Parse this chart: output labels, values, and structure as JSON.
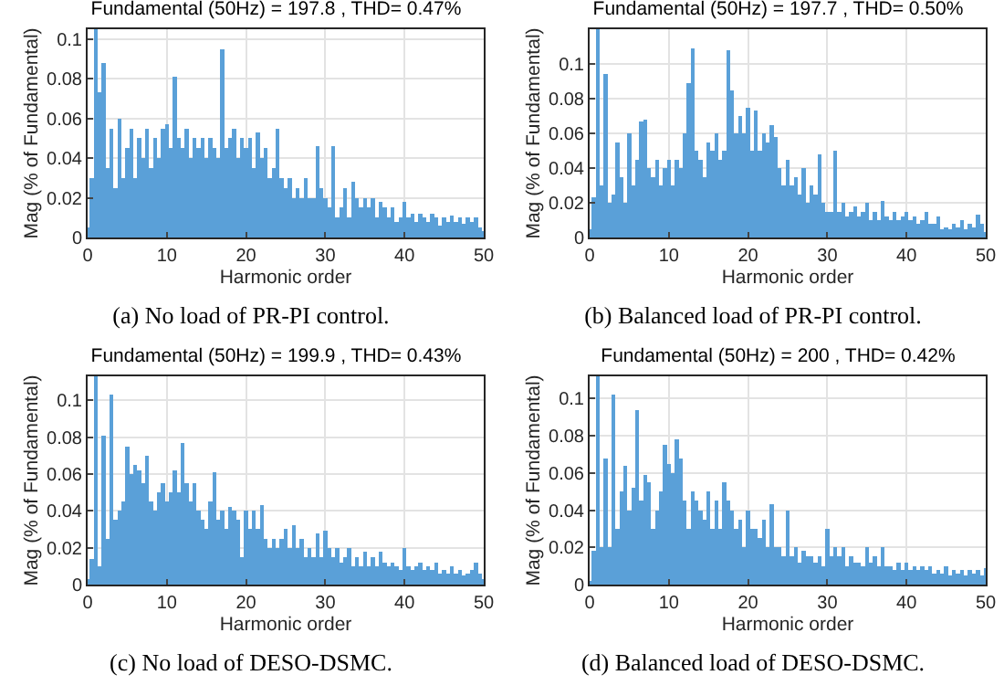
{
  "chart_data": [
    {
      "type": "bar",
      "title": "Fundamental (50Hz) = 197.8 , THD= 0.47%",
      "xlabel": "Harmonic order",
      "ylabel": "Mag (% of Fundamental)",
      "annotations": [
        "(a) No load of PR-PI control."
      ],
      "xlim": [
        0,
        50
      ],
      "xticks": [
        0,
        10,
        20,
        30,
        40,
        50
      ],
      "ylim": [
        0,
        0.105
      ],
      "yticks": [
        0,
        0.02,
        0.04,
        0.06,
        0.08,
        0.1
      ],
      "grid": true,
      "x": [
        0,
        0.5,
        1,
        1.5,
        2,
        2.5,
        3,
        3.5,
        4,
        4.5,
        5,
        5.5,
        6,
        6.5,
        7,
        7.5,
        8,
        8.5,
        9,
        9.5,
        10,
        10.5,
        11,
        11.5,
        12,
        12.5,
        13,
        13.5,
        14,
        14.5,
        15,
        15.5,
        16,
        16.5,
        17,
        17.5,
        18,
        18.5,
        19,
        19.5,
        20,
        20.5,
        21,
        21.5,
        22,
        22.5,
        23,
        23.5,
        24,
        24.5,
        25,
        25.5,
        26,
        26.5,
        27,
        27.5,
        28,
        28.5,
        29,
        29.5,
        30,
        30.5,
        31,
        31.5,
        32,
        32.5,
        33,
        33.5,
        34,
        34.5,
        35,
        35.5,
        36,
        36.5,
        37,
        37.5,
        38,
        38.5,
        39,
        39.5,
        40,
        40.5,
        41,
        41.5,
        42,
        42.5,
        43,
        43.5,
        44,
        44.5,
        45,
        45.5,
        46,
        46.5,
        47,
        47.5,
        48,
        48.5,
        49,
        49.5,
        50
      ],
      "series": [
        {
          "color": "#5aa0d8",
          "values": [
            0.005,
            0.03,
            0.105,
            0.073,
            0.088,
            0.035,
            0.055,
            0.025,
            0.06,
            0.03,
            0.045,
            0.055,
            0.03,
            0.05,
            0.04,
            0.055,
            0.035,
            0.05,
            0.04,
            0.055,
            0.057,
            0.045,
            0.081,
            0.05,
            0.045,
            0.055,
            0.04,
            0.05,
            0.045,
            0.05,
            0.04,
            0.05,
            0.045,
            0.04,
            0.095,
            0.045,
            0.05,
            0.055,
            0.04,
            0.05,
            0.045,
            0.05,
            0.035,
            0.053,
            0.04,
            0.045,
            0.03,
            0.035,
            0.055,
            0.03,
            0.025,
            0.03,
            0.02,
            0.025,
            0.02,
            0.03,
            0.02,
            0.02,
            0.046,
            0.025,
            0.02,
            0.015,
            0.046,
            0.01,
            0.015,
            0.025,
            0.01,
            0.028,
            0.02,
            0.015,
            0.02,
            0.015,
            0.02,
            0.01,
            0.018,
            0.015,
            0.01,
            0.015,
            0.008,
            0.01,
            0.018,
            0.01,
            0.012,
            0.008,
            0.012,
            0.01,
            0.008,
            0.012,
            0.01,
            0.006,
            0.01,
            0.008,
            0.011,
            0.008,
            0.01,
            0.007,
            0.01,
            0.008,
            0.01,
            0.005,
            0.003
          ]
        }
      ]
    },
    {
      "type": "bar",
      "title": "Fundamental (50Hz) = 197.7 , THD= 0.50%",
      "xlabel": "Harmonic order",
      "ylabel": "Mag (% of Fundamental)",
      "annotations": [
        "(b) Balanced load of PR-PI control."
      ],
      "xlim": [
        0,
        50
      ],
      "xticks": [
        0,
        10,
        20,
        30,
        40,
        50
      ],
      "ylim": [
        0,
        0.12
      ],
      "yticks": [
        0,
        0.02,
        0.04,
        0.06,
        0.08,
        0.1
      ],
      "grid": true,
      "x": [
        0,
        0.5,
        1,
        1.5,
        2,
        2.5,
        3,
        3.5,
        4,
        4.5,
        5,
        5.5,
        6,
        6.5,
        7,
        7.5,
        8,
        8.5,
        9,
        9.5,
        10,
        10.5,
        11,
        11.5,
        12,
        12.5,
        13,
        13.5,
        14,
        14.5,
        15,
        15.5,
        16,
        16.5,
        17,
        17.5,
        18,
        18.5,
        19,
        19.5,
        20,
        20.5,
        21,
        21.5,
        22,
        22.5,
        23,
        23.5,
        24,
        24.5,
        25,
        25.5,
        26,
        26.5,
        27,
        27.5,
        28,
        28.5,
        29,
        29.5,
        30,
        30.5,
        31,
        31.5,
        32,
        32.5,
        33,
        33.5,
        34,
        34.5,
        35,
        35.5,
        36,
        36.5,
        37,
        37.5,
        38,
        38.5,
        39,
        39.5,
        40,
        40.5,
        41,
        41.5,
        42,
        42.5,
        43,
        43.5,
        44,
        44.5,
        45,
        45.5,
        46,
        46.5,
        47,
        47.5,
        48,
        48.5,
        49,
        49.5,
        50
      ],
      "series": [
        {
          "color": "#5aa0d8",
          "values": [
            0.005,
            0.023,
            0.12,
            0.03,
            0.094,
            0.02,
            0.025,
            0.055,
            0.035,
            0.02,
            0.06,
            0.03,
            0.045,
            0.067,
            0.068,
            0.04,
            0.035,
            0.045,
            0.03,
            0.04,
            0.045,
            0.03,
            0.045,
            0.04,
            0.06,
            0.089,
            0.109,
            0.05,
            0.045,
            0.035,
            0.055,
            0.05,
            0.06,
            0.045,
            0.05,
            0.108,
            0.085,
            0.06,
            0.07,
            0.06,
            0.075,
            0.05,
            0.073,
            0.05,
            0.06,
            0.055,
            0.065,
            0.058,
            0.04,
            0.03,
            0.045,
            0.03,
            0.035,
            0.025,
            0.04,
            0.02,
            0.03,
            0.025,
            0.048,
            0.02,
            0.015,
            0.015,
            0.05,
            0.015,
            0.02,
            0.012,
            0.015,
            0.018,
            0.012,
            0.015,
            0.02,
            0.01,
            0.015,
            0.01,
            0.021,
            0.012,
            0.01,
            0.015,
            0.01,
            0.012,
            0.015,
            0.01,
            0.012,
            0.008,
            0.01,
            0.015,
            0.008,
            0.008,
            0.012,
            0.005,
            0.006,
            0.005,
            0.008,
            0.006,
            0.01,
            0.005,
            0.008,
            0.006,
            0.013,
            0.008,
            0.003
          ]
        }
      ]
    },
    {
      "type": "bar",
      "title": "Fundamental (50Hz) = 199.9 , THD= 0.43%",
      "xlabel": "Harmonic order",
      "ylabel": "Mag (% of Fundamental)",
      "annotations": [
        "(c) No load of DESO-DSMC."
      ],
      "xlim": [
        0,
        50
      ],
      "xticks": [
        0,
        10,
        20,
        30,
        40,
        50
      ],
      "ylim": [
        0,
        0.113
      ],
      "yticks": [
        0,
        0.02,
        0.04,
        0.06,
        0.08,
        0.1
      ],
      "grid": true,
      "x": [
        0,
        0.5,
        1,
        1.5,
        2,
        2.5,
        3,
        3.5,
        4,
        4.5,
        5,
        5.5,
        6,
        6.5,
        7,
        7.5,
        8,
        8.5,
        9,
        9.5,
        10,
        10.5,
        11,
        11.5,
        12,
        12.5,
        13,
        13.5,
        14,
        14.5,
        15,
        15.5,
        16,
        16.5,
        17,
        17.5,
        18,
        18.5,
        19,
        19.5,
        20,
        20.5,
        21,
        21.5,
        22,
        22.5,
        23,
        23.5,
        24,
        24.5,
        25,
        25.5,
        26,
        26.5,
        27,
        27.5,
        28,
        28.5,
        29,
        29.5,
        30,
        30.5,
        31,
        31.5,
        32,
        32.5,
        33,
        33.5,
        34,
        34.5,
        35,
        35.5,
        36,
        36.5,
        37,
        37.5,
        38,
        38.5,
        39,
        39.5,
        40,
        40.5,
        41,
        41.5,
        42,
        42.5,
        43,
        43.5,
        44,
        44.5,
        45,
        45.5,
        46,
        46.5,
        47,
        47.5,
        48,
        48.5,
        49,
        49.5,
        50
      ],
      "series": [
        {
          "color": "#5aa0d8",
          "values": [
            0.003,
            0.014,
            0.113,
            0.01,
            0.081,
            0.025,
            0.103,
            0.035,
            0.04,
            0.045,
            0.075,
            0.06,
            0.065,
            0.062,
            0.055,
            0.07,
            0.045,
            0.04,
            0.05,
            0.055,
            0.045,
            0.05,
            0.062,
            0.05,
            0.077,
            0.055,
            0.045,
            0.055,
            0.04,
            0.035,
            0.03,
            0.045,
            0.061,
            0.035,
            0.04,
            0.03,
            0.042,
            0.04,
            0.035,
            0.015,
            0.04,
            0.03,
            0.04,
            0.03,
            0.043,
            0.025,
            0.02,
            0.025,
            0.02,
            0.025,
            0.03,
            0.02,
            0.032,
            0.02,
            0.025,
            0.015,
            0.02,
            0.015,
            0.028,
            0.015,
            0.029,
            0.02,
            0.015,
            0.02,
            0.012,
            0.015,
            0.02,
            0.01,
            0.015,
            0.01,
            0.018,
            0.01,
            0.015,
            0.01,
            0.018,
            0.012,
            0.01,
            0.012,
            0.01,
            0.008,
            0.02,
            0.01,
            0.008,
            0.01,
            0.012,
            0.008,
            0.01,
            0.008,
            0.012,
            0.006,
            0.008,
            0.006,
            0.01,
            0.006,
            0.008,
            0.005,
            0.006,
            0.008,
            0.012,
            0.006,
            0.003
          ]
        }
      ]
    },
    {
      "type": "bar",
      "title": "Fundamental (50Hz) = 200 , THD= 0.42%",
      "xlabel": "Harmonic order",
      "ylabel": "Mag (% of Fundamental)",
      "annotations": [
        "(d) Balanced load of DESO-DSMC."
      ],
      "xlim": [
        0,
        50
      ],
      "xticks": [
        0,
        10,
        20,
        30,
        40,
        50
      ],
      "ylim": [
        0,
        0.112
      ],
      "yticks": [
        0,
        0.02,
        0.04,
        0.06,
        0.08,
        0.1
      ],
      "grid": true,
      "x": [
        0,
        0.5,
        1,
        1.5,
        2,
        2.5,
        3,
        3.5,
        4,
        4.5,
        5,
        5.5,
        6,
        6.5,
        7,
        7.5,
        8,
        8.5,
        9,
        9.5,
        10,
        10.5,
        11,
        11.5,
        12,
        12.5,
        13,
        13.5,
        14,
        14.5,
        15,
        15.5,
        16,
        16.5,
        17,
        17.5,
        18,
        18.5,
        19,
        19.5,
        20,
        20.5,
        21,
        21.5,
        22,
        22.5,
        23,
        23.5,
        24,
        24.5,
        25,
        25.5,
        26,
        26.5,
        27,
        27.5,
        28,
        28.5,
        29,
        29.5,
        30,
        30.5,
        31,
        31.5,
        32,
        32.5,
        33,
        33.5,
        34,
        34.5,
        35,
        35.5,
        36,
        36.5,
        37,
        37.5,
        38,
        38.5,
        39,
        39.5,
        40,
        40.5,
        41,
        41.5,
        42,
        42.5,
        43,
        43.5,
        44,
        44.5,
        45,
        45.5,
        46,
        46.5,
        47,
        47.5,
        48,
        48.5,
        49,
        49.5,
        50
      ],
      "series": [
        {
          "color": "#5aa0d8",
          "values": [
            0.002,
            0.018,
            0.112,
            0.02,
            0.068,
            0.02,
            0.102,
            0.03,
            0.05,
            0.064,
            0.04,
            0.052,
            0.094,
            0.045,
            0.059,
            0.055,
            0.03,
            0.04,
            0.05,
            0.075,
            0.065,
            0.06,
            0.078,
            0.068,
            0.045,
            0.03,
            0.05,
            0.045,
            0.04,
            0.035,
            0.05,
            0.03,
            0.045,
            0.03,
            0.055,
            0.045,
            0.04,
            0.03,
            0.035,
            0.02,
            0.04,
            0.03,
            0.03,
            0.025,
            0.035,
            0.02,
            0.043,
            0.02,
            0.02,
            0.015,
            0.04,
            0.015,
            0.02,
            0.012,
            0.018,
            0.015,
            0.015,
            0.012,
            0.015,
            0.01,
            0.03,
            0.015,
            0.02,
            0.015,
            0.02,
            0.01,
            0.015,
            0.012,
            0.012,
            0.01,
            0.02,
            0.012,
            0.015,
            0.01,
            0.02,
            0.01,
            0.01,
            0.008,
            0.012,
            0.008,
            0.012,
            0.008,
            0.01,
            0.008,
            0.01,
            0.008,
            0.01,
            0.006,
            0.008,
            0.006,
            0.01,
            0.005,
            0.008,
            0.006,
            0.008,
            0.005,
            0.008,
            0.006,
            0.008,
            0.005,
            0.009
          ]
        }
      ]
    }
  ]
}
